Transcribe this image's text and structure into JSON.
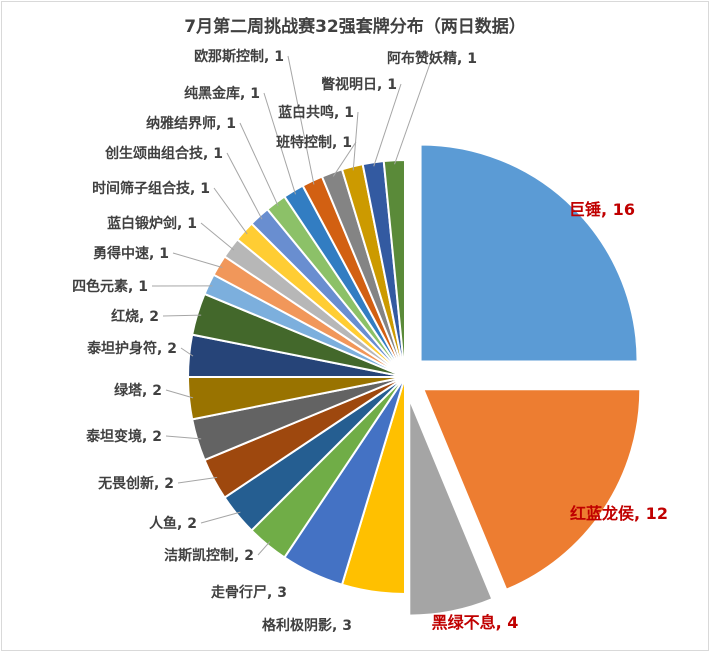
{
  "chart_data": {
    "type": "pie",
    "title": "7月第二周挑战赛32强套牌分布（两日数据）",
    "start": "top, clockwise",
    "exploded": [
      "巨锤",
      "红蓝龙侯",
      "黑绿不息"
    ],
    "slices": [
      {
        "name": "巨锤",
        "value": 16,
        "color": "#5b9bd5",
        "highlight": true
      },
      {
        "name": "红蓝龙侯",
        "value": 12,
        "color": "#ed7d31",
        "highlight": true
      },
      {
        "name": "黑绿不息",
        "value": 4,
        "color": "#a5a5a5",
        "highlight": true
      },
      {
        "name": "格利极阴影",
        "value": 3,
        "color": "#ffc000"
      },
      {
        "name": "走骨行尸",
        "value": 3,
        "color": "#4472c4"
      },
      {
        "name": "洁斯凯控制",
        "value": 2,
        "color": "#70ad47"
      },
      {
        "name": "人鱼",
        "value": 2,
        "color": "#255e91"
      },
      {
        "name": "无畏创新",
        "value": 2,
        "color": "#9e480e"
      },
      {
        "name": "泰坦变境",
        "value": 2,
        "color": "#636363"
      },
      {
        "name": "绿塔",
        "value": 2,
        "color": "#997300"
      },
      {
        "name": "泰坦护身符",
        "value": 2,
        "color": "#264478"
      },
      {
        "name": "红烧",
        "value": 2,
        "color": "#43682b"
      },
      {
        "name": "四色元素",
        "value": 1,
        "color": "#7cafdd"
      },
      {
        "name": "勇得中速",
        "value": 1,
        "color": "#f1975a"
      },
      {
        "name": "蓝白锻炉剑",
        "value": 1,
        "color": "#b7b7b7"
      },
      {
        "name": "时间筛子组合技",
        "value": 1,
        "color": "#ffcd33"
      },
      {
        "name": "创生颂曲组合技",
        "value": 1,
        "color": "#698ed0"
      },
      {
        "name": "纳雅结界师",
        "value": 1,
        "color": "#8cc168"
      },
      {
        "name": "纯黑金库",
        "value": 1,
        "color": "#327dc2"
      },
      {
        "name": "欧那斯控制",
        "value": 1,
        "color": "#d26012"
      },
      {
        "name": "班特控制",
        "value": 1,
        "color": "#848484"
      },
      {
        "name": "蓝白共鸣",
        "value": 1,
        "color": "#cc9a00"
      },
      {
        "name": "瞥视明日",
        "value": 1,
        "color": "#335aa1"
      },
      {
        "name": "阿布赞妖精",
        "value": 1,
        "color": "#5a8a39"
      }
    ]
  }
}
